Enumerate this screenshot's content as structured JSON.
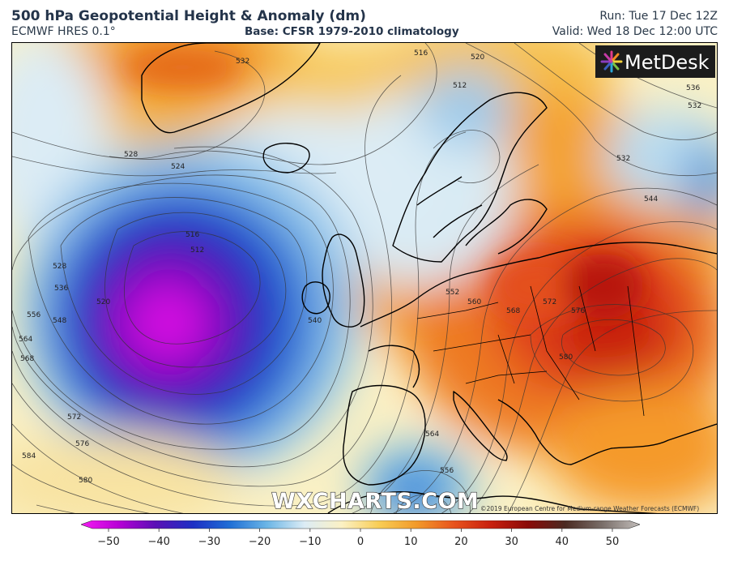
{
  "header": {
    "title": "500 hPa Geopotential Height & Anomaly (dm)",
    "model": "ECMWF HRES 0.1°",
    "base": "Base: CFSR 1979-2010 climatology",
    "run": "Run: Tue 17 Dec 12Z",
    "valid": "Valid: Wed 18 Dec 12:00 UTC"
  },
  "map": {
    "logo_text": "MetDesk",
    "watermark": "WXCHARTS.COM",
    "copyright": "©2019 European Centre for Medium-range Weather Forecasts (ECMWF)",
    "contour_labels": [
      "532",
      "528",
      "524",
      "516",
      "512",
      "520",
      "528",
      "536",
      "548",
      "556",
      "564",
      "568",
      "572",
      "576",
      "580",
      "584",
      "540",
      "552",
      "560",
      "568",
      "572",
      "576",
      "580",
      "516",
      "520",
      "512",
      "532",
      "544",
      "536",
      "532",
      "556",
      "564"
    ]
  },
  "colorbar": {
    "ticks": [
      "−50",
      "−40",
      "−30",
      "−20",
      "−10",
      "0",
      "10",
      "20",
      "30",
      "40",
      "50"
    ],
    "colors": [
      "#f51bf2",
      "#b800d6",
      "#5a0fb5",
      "#1d2fc4",
      "#1f6fd6",
      "#6cb6e6",
      "#dcecf5",
      "#fbf1c4",
      "#f8cd55",
      "#f29a2a",
      "#e8541d",
      "#c8200f",
      "#8a0a08",
      "#4a2a22",
      "#7a6f6a",
      "#c2bdba"
    ]
  }
}
